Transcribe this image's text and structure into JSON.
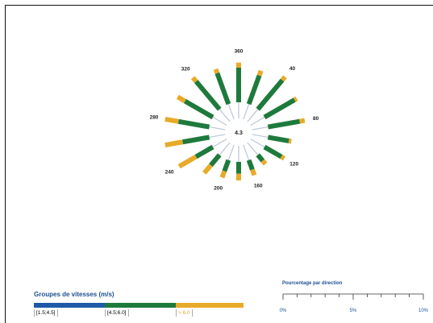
{
  "chart_data": {
    "type": "wind-rose",
    "center_label": "4.3",
    "direction_labels": [
      "320",
      "360",
      "40",
      "80",
      "120",
      "160",
      "200",
      "240",
      "280"
    ],
    "speed_groups_title": "Groupes de vitesses (m/s)",
    "speed_groups": [
      {
        "label": "[1.5;4.5]",
        "color": "#1e5aa8"
      },
      {
        "label": "[4.5;6.0]",
        "color": "#1e7a3c"
      },
      {
        "label": "> 6.0",
        "color": "#e8aa2a"
      }
    ],
    "percentage_scale": {
      "title": "Pourcentage par direction",
      "ticks": [
        "0%",
        "5%",
        "10%"
      ],
      "max": 10
    },
    "petals": [
      {
        "direction": 0,
        "inner": 1.9,
        "green": 4.1,
        "yellow": 0.6
      },
      {
        "direction": 20,
        "inner": 1.9,
        "green": 3.6,
        "yellow": 0.6
      },
      {
        "direction": 40,
        "inner": 1.9,
        "green": 4.5,
        "yellow": 0.5
      },
      {
        "direction": 60,
        "inner": 1.9,
        "green": 4.1,
        "yellow": 0.3
      },
      {
        "direction": 80,
        "inner": 1.9,
        "green": 3.8,
        "yellow": 0.6
      },
      {
        "direction": 100,
        "inner": 1.9,
        "green": 2.5,
        "yellow": 0.3
      },
      {
        "direction": 120,
        "inner": 1.9,
        "green": 2.3,
        "yellow": 0.4
      },
      {
        "direction": 140,
        "inner": 1.9,
        "green": 0.9,
        "yellow": 0.5
      },
      {
        "direction": 160,
        "inner": 1.9,
        "green": 1.2,
        "yellow": 0.7
      },
      {
        "direction": 180,
        "inner": 1.9,
        "green": 1.4,
        "yellow": 0.8
      },
      {
        "direction": 200,
        "inner": 1.9,
        "green": 1.4,
        "yellow": 0.8
      },
      {
        "direction": 220,
        "inner": 1.9,
        "green": 1.6,
        "yellow": 1.2
      },
      {
        "direction": 240,
        "inner": 1.9,
        "green": 2.3,
        "yellow": 2.3
      },
      {
        "direction": 260,
        "inner": 1.9,
        "green": 3.2,
        "yellow": 2.1
      },
      {
        "direction": 280,
        "inner": 1.9,
        "green": 3.7,
        "yellow": 1.6
      },
      {
        "direction": 300,
        "inner": 1.9,
        "green": 3.8,
        "yellow": 1.0
      },
      {
        "direction": 320,
        "inner": 1.9,
        "green": 4.3,
        "yellow": 0.6
      },
      {
        "direction": 340,
        "inner": 1.9,
        "green": 3.9,
        "yellow": 0.5
      }
    ]
  }
}
